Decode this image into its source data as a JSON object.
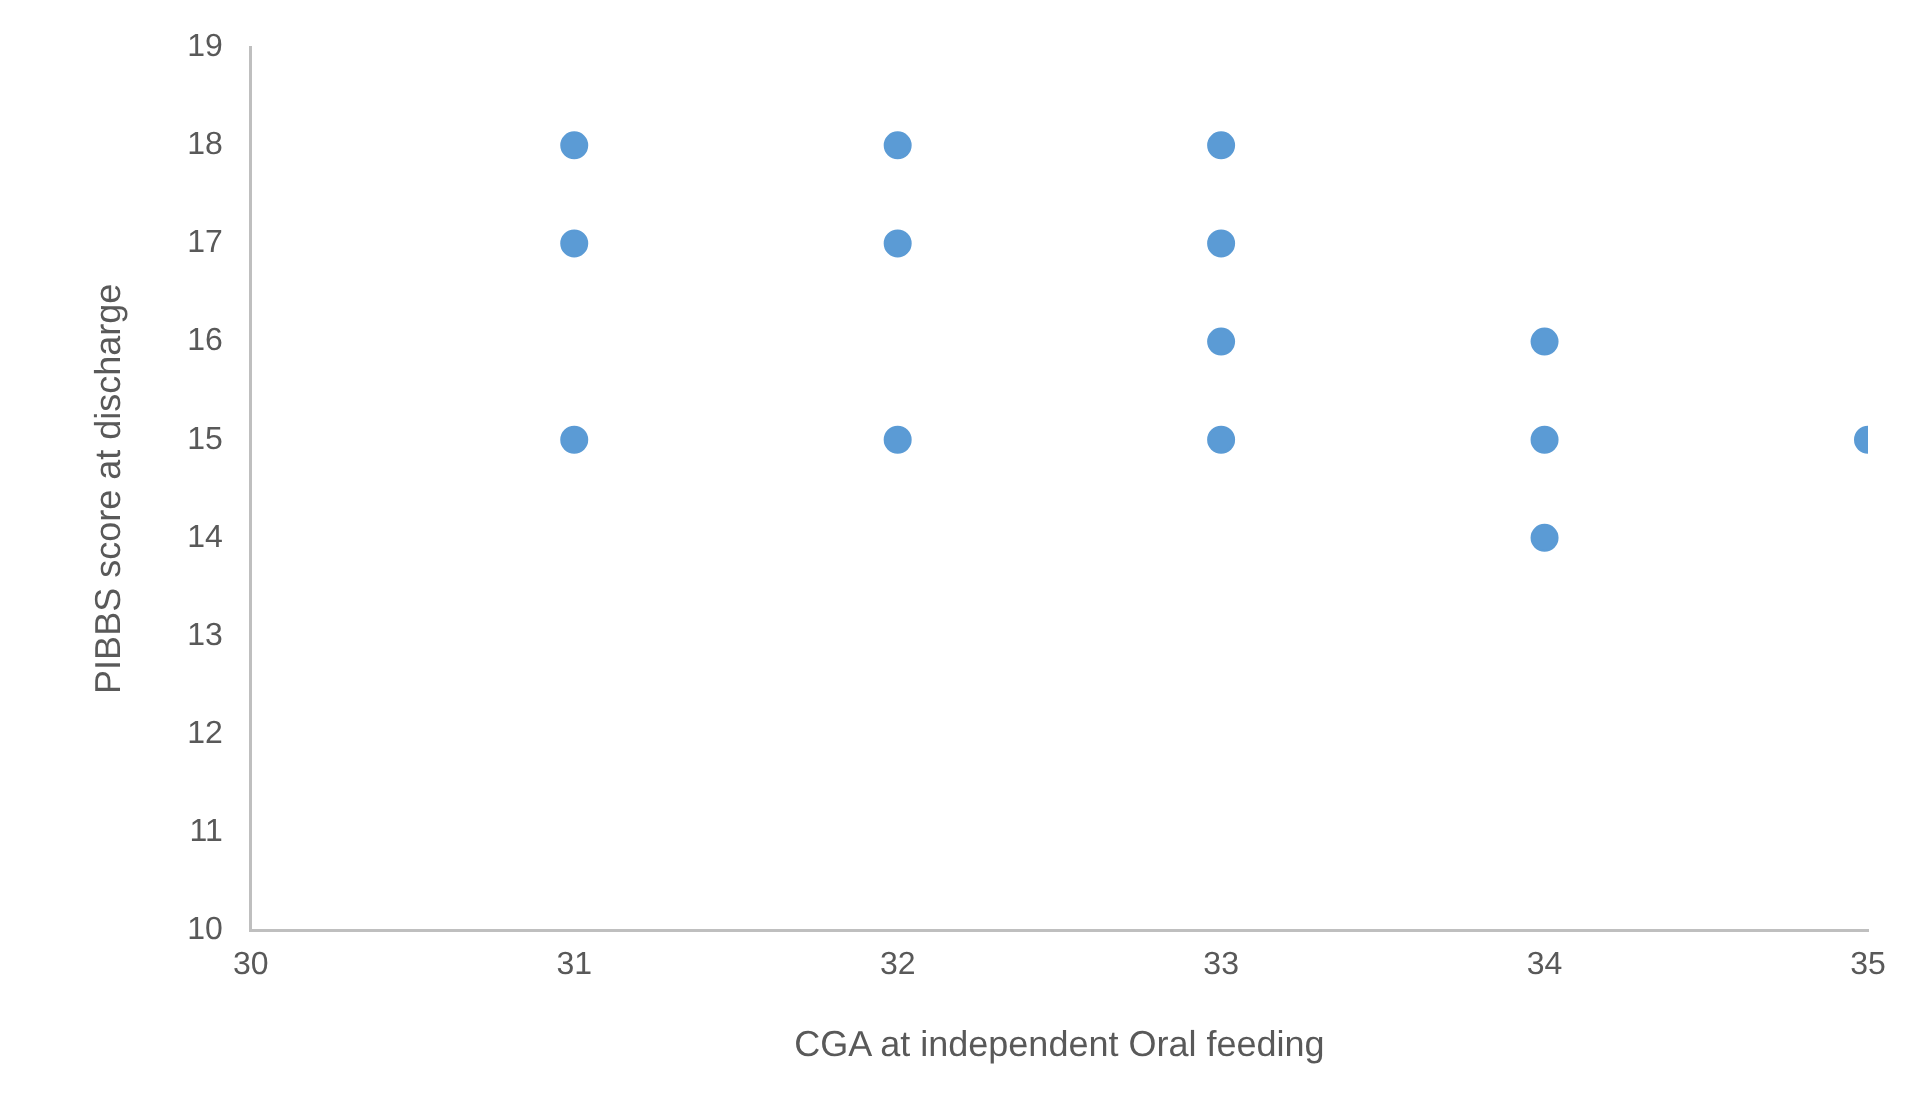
{
  "chart_data": {
    "type": "scatter",
    "xlabel": "CGA at independent Oral feeding",
    "ylabel": "PIBBS score at discharge",
    "x": [
      31,
      31,
      31,
      32,
      32,
      32,
      33,
      33,
      33,
      33,
      34,
      34,
      34,
      35
    ],
    "series": [
      {
        "color": "#5b9bd5",
        "values": [
          18,
          17,
          15,
          18,
          17,
          15,
          18,
          17,
          16,
          15,
          16,
          15,
          14,
          15
        ]
      }
    ],
    "xlim": [
      30,
      35
    ],
    "xticks": [
      30,
      31,
      32,
      33,
      34,
      35
    ],
    "ylim": [
      10,
      19
    ],
    "yticks": [
      10,
      11,
      12,
      13,
      14,
      15,
      16,
      17,
      18,
      19
    ],
    "grid": false,
    "legend": false,
    "marker": "circle"
  }
}
